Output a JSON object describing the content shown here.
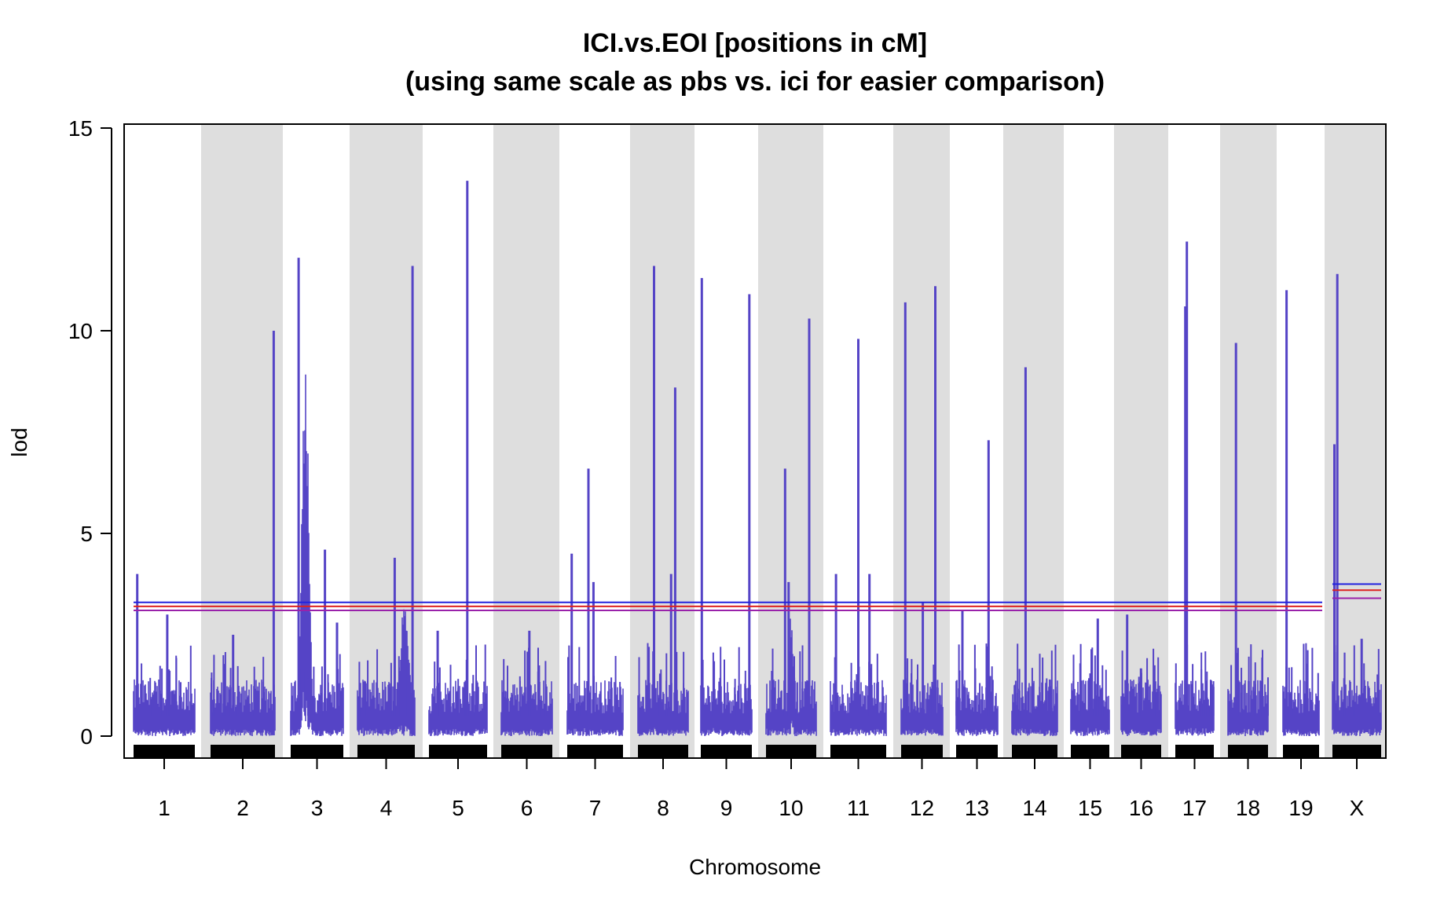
{
  "chart_data": {
    "type": "line",
    "title_lines": [
      "ICI.vs.EOI [positions in cM]",
      "(using same scale as pbs vs. ici for easier comparison)"
    ],
    "xlabel": "Chromosome",
    "ylabel": "lod",
    "ylim": [
      -0.5,
      15
    ],
    "yticks": [
      0,
      5,
      10,
      15
    ],
    "chromosomes": [
      "1",
      "2",
      "3",
      "4",
      "5",
      "6",
      "7",
      "8",
      "9",
      "10",
      "11",
      "12",
      "13",
      "14",
      "15",
      "16",
      "17",
      "18",
      "19",
      "X"
    ],
    "shaded_chromosomes": [
      "2",
      "4",
      "6",
      "8",
      "10",
      "12",
      "14",
      "16",
      "18",
      "X"
    ],
    "series_color": "#5544c6",
    "background_lod_max": 1.4,
    "peaks": [
      {
        "chr": "1",
        "pos": 0.06,
        "lod": 4.0
      },
      {
        "chr": "1",
        "pos": 0.55,
        "lod": 3.0
      },
      {
        "chr": "2",
        "pos": 0.35,
        "lod": 2.5
      },
      {
        "chr": "2",
        "pos": 0.98,
        "lod": 10.0
      },
      {
        "chr": "3",
        "pos": 0.15,
        "lod": 11.8
      },
      {
        "chr": "3",
        "pos": 0.65,
        "lod": 4.6
      },
      {
        "chr": "3",
        "pos": 0.88,
        "lod": 2.8
      },
      {
        "chr": "4",
        "pos": 0.65,
        "lod": 4.4
      },
      {
        "chr": "4",
        "pos": 0.96,
        "lod": 11.6
      },
      {
        "chr": "5",
        "pos": 0.66,
        "lod": 13.7
      },
      {
        "chr": "5",
        "pos": 0.15,
        "lod": 2.6
      },
      {
        "chr": "6",
        "pos": 0.55,
        "lod": 2.6
      },
      {
        "chr": "7",
        "pos": 0.08,
        "lod": 4.5
      },
      {
        "chr": "7",
        "pos": 0.38,
        "lod": 6.6
      },
      {
        "chr": "7",
        "pos": 0.47,
        "lod": 3.8
      },
      {
        "chr": "8",
        "pos": 0.32,
        "lod": 11.6
      },
      {
        "chr": "8",
        "pos": 0.74,
        "lod": 8.6
      },
      {
        "chr": "8",
        "pos": 0.66,
        "lod": 4.0
      },
      {
        "chr": "9",
        "pos": 0.02,
        "lod": 11.3
      },
      {
        "chr": "9",
        "pos": 0.95,
        "lod": 10.9
      },
      {
        "chr": "10",
        "pos": 0.38,
        "lod": 6.6
      },
      {
        "chr": "10",
        "pos": 0.86,
        "lod": 10.3
      },
      {
        "chr": "10",
        "pos": 0.45,
        "lod": 3.8
      },
      {
        "chr": "11",
        "pos": 0.1,
        "lod": 4.0
      },
      {
        "chr": "11",
        "pos": 0.5,
        "lod": 9.8
      },
      {
        "chr": "11",
        "pos": 0.7,
        "lod": 4.0
      },
      {
        "chr": "12",
        "pos": 0.1,
        "lod": 10.7
      },
      {
        "chr": "12",
        "pos": 0.52,
        "lod": 3.3
      },
      {
        "chr": "12",
        "pos": 0.82,
        "lod": 11.1
      },
      {
        "chr": "13",
        "pos": 0.15,
        "lod": 3.1
      },
      {
        "chr": "13",
        "pos": 0.78,
        "lod": 7.3
      },
      {
        "chr": "14",
        "pos": 0.3,
        "lod": 9.1
      },
      {
        "chr": "15",
        "pos": 0.7,
        "lod": 2.9
      },
      {
        "chr": "16",
        "pos": 0.15,
        "lod": 3.0
      },
      {
        "chr": "17",
        "pos": 0.3,
        "lod": 12.2
      },
      {
        "chr": "17",
        "pos": 0.26,
        "lod": 10.6
      },
      {
        "chr": "18",
        "pos": 0.2,
        "lod": 9.7
      },
      {
        "chr": "19",
        "pos": 0.1,
        "lod": 11.0
      },
      {
        "chr": "X",
        "pos": 0.1,
        "lod": 11.4
      },
      {
        "chr": "X",
        "pos": 0.04,
        "lod": 7.2
      },
      {
        "chr": "X",
        "pos": 0.6,
        "lod": 2.4
      }
    ],
    "humps": [
      {
        "chr": "3",
        "center": 0.28,
        "width": 0.28,
        "lod": 9.3
      },
      {
        "chr": "4",
        "center": 0.82,
        "width": 0.35,
        "lod": 3.4
      },
      {
        "chr": "10",
        "center": 0.5,
        "width": 0.2,
        "lod": 3.2
      },
      {
        "chr": "1",
        "center": 0.15,
        "width": 0.3,
        "lod": 1.0
      }
    ],
    "thresholds_autosome": [
      {
        "lod": 3.3,
        "color": "#2222dd"
      },
      {
        "lod": 3.2,
        "color": "#dd2222"
      },
      {
        "lod": 3.1,
        "color": "#9922aa"
      }
    ],
    "thresholds_x": [
      {
        "lod": 3.75,
        "color": "#2222dd"
      },
      {
        "lod": 3.6,
        "color": "#dd2222"
      },
      {
        "lod": 3.4,
        "color": "#9922aa"
      }
    ]
  }
}
